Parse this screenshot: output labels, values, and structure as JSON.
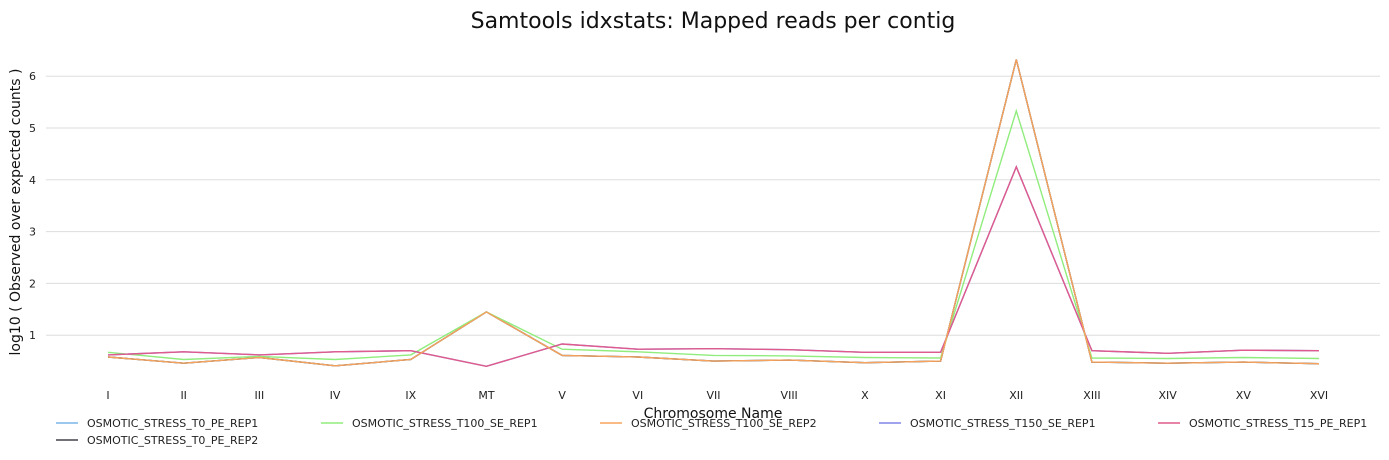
{
  "chart_data": {
    "type": "line",
    "title": "Samtools idxstats: Mapped reads per contig",
    "xlabel": "Chromosome Name",
    "ylabel": "log10 ( Observed over expected counts )",
    "categories": [
      "I",
      "II",
      "III",
      "IV",
      "IX",
      "MT",
      "V",
      "VI",
      "VII",
      "VIII",
      "X",
      "XI",
      "XII",
      "XIII",
      "XIV",
      "XV",
      "XVI"
    ],
    "ylim": [
      0,
      6.4
    ],
    "yticks": [
      1,
      2,
      3,
      4,
      5,
      6
    ],
    "grid": true,
    "legend_position": "bottom",
    "series": [
      {
        "name": "OSMOTIC_STRESS_T0_PE_REP1",
        "color": "#7cb5ec",
        "values": [
          0.58,
          0.46,
          0.57,
          0.41,
          0.53,
          1.45,
          0.61,
          0.58,
          0.5,
          0.52,
          0.47,
          0.5,
          6.32,
          0.48,
          0.46,
          0.48,
          0.45
        ]
      },
      {
        "name": "OSMOTIC_STRESS_T0_PE_REP2",
        "color": "#434348",
        "values": [
          0.58,
          0.46,
          0.57,
          0.41,
          0.53,
          1.45,
          0.61,
          0.58,
          0.5,
          0.52,
          0.47,
          0.5,
          6.32,
          0.48,
          0.46,
          0.48,
          0.45
        ]
      },
      {
        "name": "OSMOTIC_STRESS_T100_SE_REP1",
        "color": "#90ed7d",
        "values": [
          0.67,
          0.53,
          0.59,
          0.53,
          0.62,
          1.45,
          0.73,
          0.68,
          0.61,
          0.6,
          0.57,
          0.56,
          5.33,
          0.56,
          0.55,
          0.57,
          0.55
        ]
      },
      {
        "name": "OSMOTIC_STRESS_T100_SE_REP2",
        "color": "#f7a35c",
        "values": [
          0.58,
          0.46,
          0.57,
          0.41,
          0.53,
          1.45,
          0.61,
          0.58,
          0.5,
          0.52,
          0.47,
          0.5,
          6.32,
          0.48,
          0.46,
          0.48,
          0.45
        ]
      },
      {
        "name": "OSMOTIC_STRESS_T150_SE_REP1",
        "color": "#8085e9",
        "values": [
          0.62,
          0.68,
          0.62,
          0.68,
          0.7,
          0.4,
          0.83,
          0.73,
          0.74,
          0.72,
          0.67,
          0.67,
          4.25,
          0.7,
          0.65,
          0.71,
          0.7
        ]
      },
      {
        "name": "OSMOTIC_STRESS_T15_PE_REP1",
        "color": "#e05a8c",
        "values": [
          0.62,
          0.68,
          0.62,
          0.68,
          0.7,
          0.4,
          0.83,
          0.73,
          0.74,
          0.72,
          0.67,
          0.67,
          4.25,
          0.7,
          0.65,
          0.71,
          0.7
        ]
      }
    ]
  }
}
